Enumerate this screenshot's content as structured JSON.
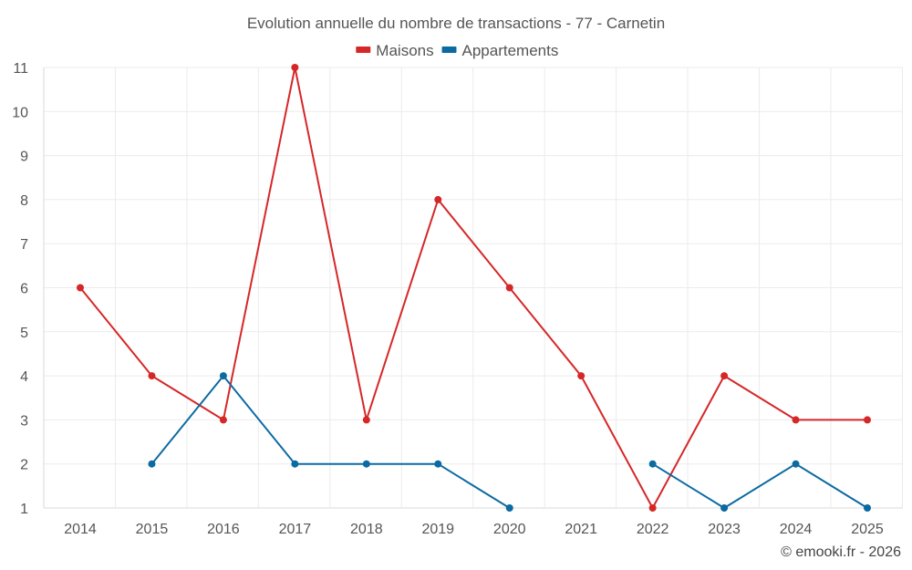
{
  "chart_data": {
    "type": "line",
    "title": "Evolution annuelle du nombre de transactions - 77 - Carnetin",
    "categories": [
      "2014",
      "2015",
      "2016",
      "2017",
      "2018",
      "2019",
      "2020",
      "2021",
      "2022",
      "2023",
      "2024",
      "2025"
    ],
    "ylim": [
      1,
      11
    ],
    "yticks": [
      1,
      2,
      3,
      4,
      5,
      6,
      7,
      8,
      9,
      10,
      11
    ],
    "grid": true,
    "legend_position": "top-center",
    "series": [
      {
        "name": "Maisons",
        "color": "#d62728",
        "values": [
          6,
          4,
          3,
          11,
          3,
          8,
          6,
          4,
          1,
          4,
          3,
          3
        ]
      },
      {
        "name": "Appartements",
        "color": "#0b6aa2",
        "values": [
          null,
          2,
          4,
          2,
          2,
          2,
          1,
          null,
          2,
          1,
          2,
          1
        ]
      }
    ]
  },
  "footer": {
    "credit": "© emooki.fr - 2026"
  }
}
